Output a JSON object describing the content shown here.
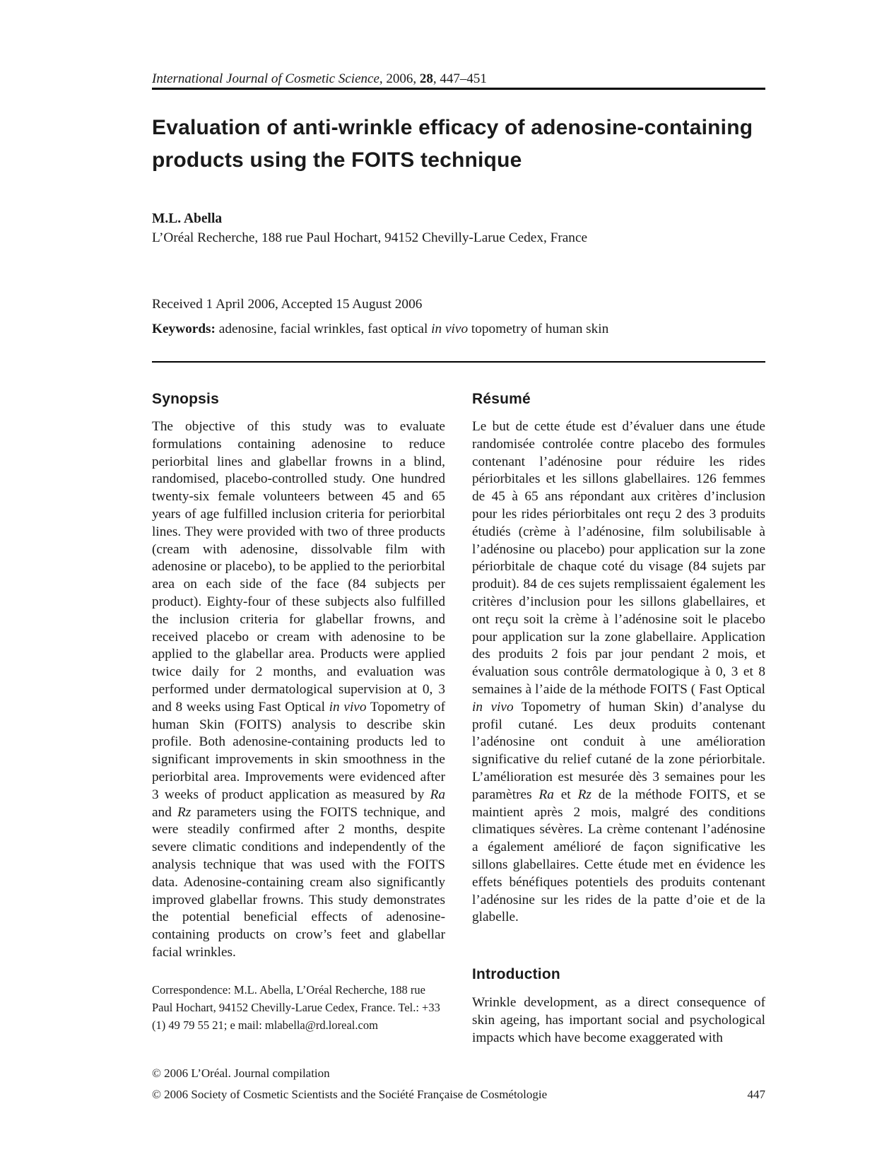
{
  "header": {
    "journal_name": "International Journal of Cosmetic Science",
    "sep_year": ", 2006, ",
    "volume": "28",
    "pages_range": ", 447–451"
  },
  "title": "Evaluation of anti-wrinkle efficacy of adenosine-containing products using the FOITS technique",
  "author": {
    "name": "M.L. Abella",
    "affiliation": "L’Oréal Recherche, 188 rue Paul Hochart, 94152 Chevilly-Larue Cedex, France"
  },
  "dates": "Received 1 April 2006, Accepted 15 August 2006",
  "keywords": {
    "label": "Keywords:",
    "before_italic": " adenosine, facial wrinkles, fast optical ",
    "italic": "in vivo",
    "after_italic": " topometry of human skin"
  },
  "synopsis": {
    "heading": "Synopsis",
    "seg1": "The objective of this study was to evaluate formulations containing adenosine to reduce periorbital lines and glabellar frowns in a blind, randomised, placebo-controlled study. One hundred twenty-six female volunteers between 45 and 65 years of age fulfilled inclusion criteria for periorbital lines. They were provided with two of three products (cream with adenosine, dissolvable film with adenosine or placebo), to be applied to the periorbital area on each side of the face (84 subjects per product). Eighty-four of these subjects also fulfilled the inclusion criteria for glabellar frowns, and received placebo or cream with adenosine to be applied to the glabellar area. Products were applied twice daily for 2 months, and evaluation was performed under dermatological supervision at 0, 3 and 8 weeks using Fast Optical ",
    "seg2_italic": "in vivo",
    "seg3": " Topometry of human Skin (FOITS) analysis to describe skin profile. Both adenosine-containing products led to significant improvements in skin smoothness in the periorbital area. Improvements were evidenced after 3 weeks of product application as measured by ",
    "seg4_italic": "Ra",
    "seg5": " and ",
    "seg6_italic": "Rz",
    "seg7": " parameters using the FOITS technique, and were steadily confirmed after 2 months, despite severe climatic conditions and independently of the analysis technique that was used with the FOITS data. Adenosine-containing cream also significantly improved glabellar frowns. This study demonstrates the potential beneficial effects of adenosine-containing products on crow’s feet and glabellar facial wrinkles."
  },
  "correspondence": "Correspondence: M.L. Abella, L’Oréal Recherche, 188 rue Paul Hochart, 94152 Chevilly-Larue Cedex, France. Tel.: +33 (1) 49 79 55 21; e mail: mlabella@rd.loreal.com",
  "resume": {
    "heading": "Résumé",
    "seg1": "Le but de cette étude est d’évaluer dans une étude randomisée controlée contre placebo des formules contenant l’adénosine pour réduire les rides périorbitales et les sillons glabellaires. 126 femmes de 45 à 65 ans répondant aux critères d’inclusion pour les rides périorbitales ont reçu 2 des 3 produits étudiés (crème à l’adénosine, film solubilisable à l’adénosine ou placebo) pour application sur la zone périorbitale de chaque coté du visage (84 sujets par produit). 84 de ces sujets remplissaient également les critères d’inclusion pour les sillons glabellaires, et ont reçu soit la crème à l’adénosine soit le placebo pour application sur la zone glabellaire. Application des produits 2 fois par jour pendant 2 mois, et évaluation sous contrôle dermatologique à 0, 3 et 8 semaines à l’aide de la méthode FOITS ( Fast Optical ",
    "seg2_italic": "in vivo",
    "seg3": " Topometry of human Skin) d’analyse du profil cutané. Les deux produits contenant l’adénosine ont conduit à une amélioration significative du relief cutané de la zone périorbitale. L’amélioration est mesurée dès 3 semaines pour les paramètres ",
    "seg4_italic": "Ra",
    "seg5": " et ",
    "seg6_italic": "Rz",
    "seg7": " de la méthode FOITS, et se maintient après 2 mois, malgré des conditions climatiques sévères. La crème contenant l’adénosine a également amélioré de façon significative les sillons glabellaires. Cette étude met en évidence les effets bénéfiques potentiels des produits contenant l’adénosine sur les rides de la patte d’oie et de la glabelle."
  },
  "introduction": {
    "heading": "Introduction",
    "text": "Wrinkle development, as a direct consequence of skin ageing, has important social and psychological impacts which have become exaggerated with"
  },
  "footer": {
    "copyright1": "© 2006 L’Oréal. Journal compilation",
    "copyright2": "© 2006 Society of Cosmetic Scientists and the Société Française de Cosmétologie",
    "page_number": "447"
  }
}
